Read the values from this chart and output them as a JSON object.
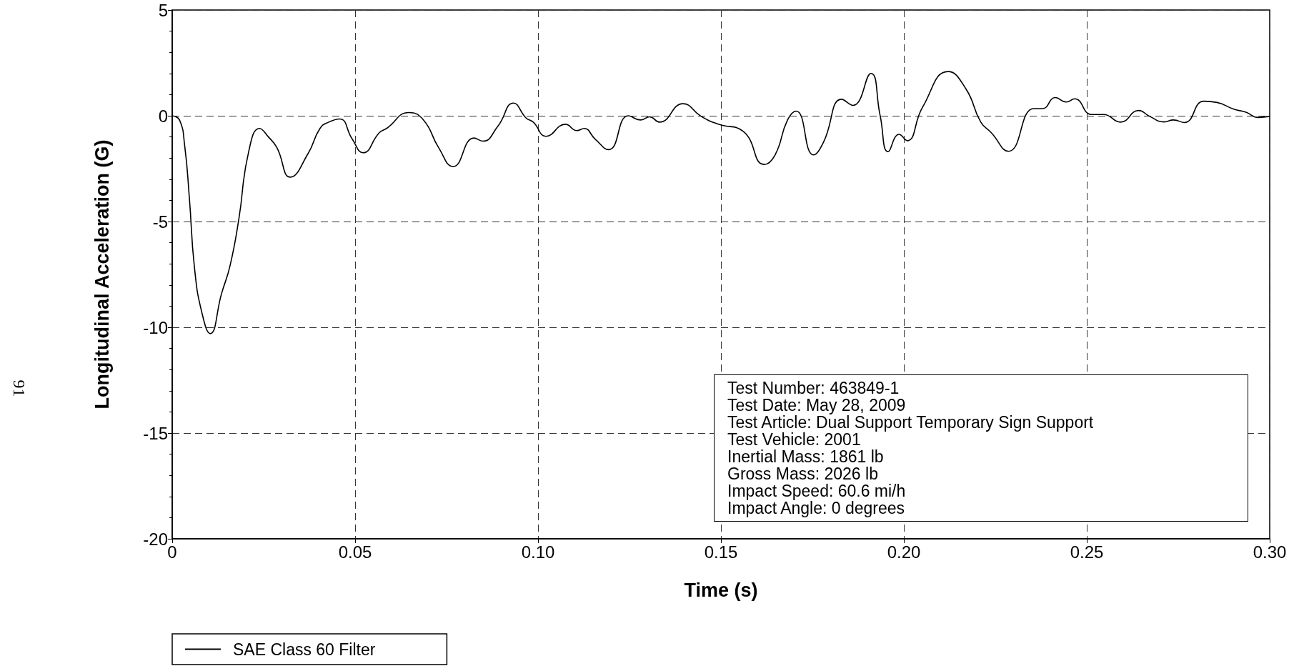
{
  "chart_data": {
    "type": "line",
    "xlabel": "Time (s)",
    "ylabel": "Longitudinal Acceleration (G)",
    "xlim": [
      0,
      0.3
    ],
    "xticks": [
      0,
      0.05,
      {
        "value": 0.1,
        "label": "0.10"
      },
      0.15,
      {
        "value": 0.2,
        "label": "0.20"
      },
      0.25,
      {
        "value": 0.3,
        "label": "0.30"
      }
    ],
    "ylim": [
      -20,
      5
    ],
    "yticks": [
      -20,
      -15,
      -10,
      -5,
      0,
      5
    ],
    "grid": true,
    "legend": "bottom left",
    "marker": "none",
    "line_style": "solid",
    "series": [
      {
        "name": "SAE Class 60 Filter",
        "color": "#000000",
        "x": [
          0,
          0.002,
          0.0034,
          0.0047,
          0.0061,
          0.0081,
          0.0104,
          0.0135,
          0.0158,
          0.0182,
          0.0209,
          0.0239,
          0.0263,
          0.0286,
          0.0323,
          0.0371,
          0.0404,
          0.0428,
          0.0458,
          0.0492,
          0.0522,
          0.0566,
          0.0586,
          0.0647,
          0.0687,
          0.0728,
          0.0768,
          0.0825,
          0.0849,
          0.089,
          0.0933,
          0.0967,
          0.0987,
          0.1022,
          0.1075,
          0.1106,
          0.1126,
          0.1156,
          0.1193,
          0.1247,
          0.1281,
          0.1305,
          0.1332,
          0.1396,
          0.1446,
          0.1493,
          0.1561,
          0.1618,
          0.1648,
          0.1682,
          0.1706,
          0.1753,
          0.178,
          0.183,
          0.1861,
          0.191,
          0.1935,
          0.1957,
          0.1987,
          0.2009,
          0.2051,
          0.2121,
          0.217,
          0.221,
          0.2239,
          0.2286,
          0.2355,
          0.2379,
          0.2414,
          0.2444,
          0.2467,
          0.2513,
          0.2546,
          0.2592,
          0.2642,
          0.2672,
          0.2711,
          0.2737,
          0.2767,
          0.282,
          0.2856,
          0.2902,
          0.2935,
          0.2968,
          0.3
        ],
        "values": [
          0,
          -0.2,
          -1.4,
          -3.9,
          -7.2,
          -9.3,
          -10.3,
          -8.4,
          -7.1,
          -4.9,
          -1.7,
          -0.6,
          -1.0,
          -1.5,
          -2.9,
          -1.8,
          -0.6,
          -0.3,
          -0.15,
          -1.1,
          -1.75,
          -0.8,
          -0.6,
          0.15,
          -0.2,
          -1.5,
          -2.4,
          -1.05,
          -1.2,
          -0.5,
          0.6,
          -0.1,
          -0.3,
          -0.97,
          -0.4,
          -0.7,
          -0.6,
          -1.1,
          -1.6,
          0,
          -0.2,
          -0.05,
          -0.3,
          0.57,
          -0.03,
          -0.4,
          -0.74,
          -2.3,
          -1.85,
          -0.2,
          0.22,
          -1.85,
          -1.26,
          0.78,
          0.49,
          2.0,
          0.02,
          -1.7,
          -0.88,
          -1.18,
          0.4,
          2.09,
          1.26,
          -0.29,
          -0.8,
          -1.68,
          0.34,
          0.34,
          0.86,
          0.65,
          0.8,
          0.06,
          0.06,
          -0.3,
          0.25,
          -0.03,
          -0.29,
          -0.2,
          -0.32,
          0.69,
          0.63,
          0.31,
          0.17,
          -0.08,
          -0.03
        ]
      }
    ],
    "annotations": [
      "Test Number: 463849-1",
      "Test Date: May 28, 2009",
      "Test Article: Dual Support Temporary Sign Support",
      "Test Vehicle: 2001",
      "Inertial Mass: 1861 lb",
      "Gross Mass: 2026 lb",
      "Impact Speed: 60.6 mi/h",
      "Impact Angle: 0 degrees",
      "91"
    ]
  }
}
